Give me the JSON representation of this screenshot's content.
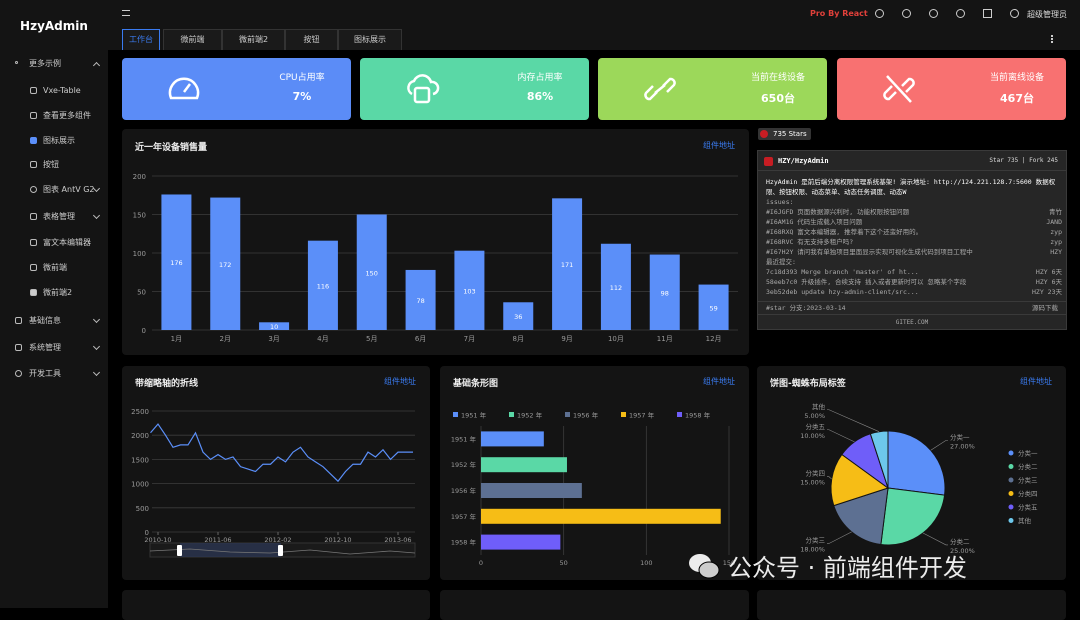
{
  "sidebar": {
    "logo": "HzyAdmin",
    "menu": [
      "更多示例",
      "Vxe-Table",
      "查看更多组件",
      "图标展示",
      "按钮",
      "图表 AntV G2",
      "表格管理",
      "富文本编辑器",
      "微前端",
      "微前端2",
      "基础信息",
      "系统管理",
      "开发工具"
    ]
  },
  "topbar": {
    "brand": "Pro By React",
    "user": "超级管理员",
    "tabs": [
      "工作台",
      "微前端",
      "微前端2",
      "按钮",
      "图标展示"
    ]
  },
  "stats": [
    {
      "label": "CPU占用率",
      "value": "7%"
    },
    {
      "label": "内存占用率",
      "value": "86%"
    },
    {
      "label": "当前在线设备",
      "value": "650台"
    },
    {
      "label": "当前离线设备",
      "value": "467台"
    }
  ],
  "chart_data": [
    {
      "type": "bar",
      "title": "近一年设备销售量",
      "link": "组件地址",
      "color": "#5b8ff9",
      "categories": [
        "1月",
        "2月",
        "3月",
        "4月",
        "5月",
        "6月",
        "7月",
        "8月",
        "9月",
        "10月",
        "11月",
        "12月"
      ],
      "values": [
        176,
        172,
        10,
        116,
        150,
        78,
        103,
        36,
        171,
        112,
        98,
        59
      ],
      "ylim": [
        0,
        200
      ],
      "yticks": [
        0,
        50,
        100,
        150,
        200
      ],
      "grid": true
    },
    {
      "type": "line",
      "title": "带缩略轴的折线",
      "link": "组件地址",
      "color": "#5b8ff9",
      "categories": [
        null,
        "2010-10",
        null,
        null,
        null,
        null,
        null,
        null,
        null,
        "2011-06",
        null,
        null,
        null,
        null,
        null,
        null,
        null,
        "2012-02",
        null,
        null,
        null,
        null,
        null,
        null,
        null,
        "2012-10",
        null,
        null,
        null,
        null,
        null,
        null,
        null,
        "2013-06",
        null,
        null
      ],
      "values": [
        2050,
        2230,
        2000,
        1750,
        1800,
        1800,
        2050,
        1650,
        1500,
        1600,
        1500,
        1550,
        1350,
        1300,
        1250,
        1400,
        1400,
        1550,
        1450,
        1650,
        1750,
        1550,
        1450,
        1350,
        1200,
        1050,
        1250,
        1400,
        1400,
        1650,
        1550,
        1700,
        1500,
        1650,
        1650,
        1650
      ],
      "ylim": [
        0,
        2500
      ],
      "yticks": [
        0,
        500,
        1000,
        1500,
        2000,
        2500
      ],
      "grid": true
    },
    {
      "type": "hbar",
      "title": "基础条形图",
      "link": "组件地址",
      "categories": [
        "1951 年",
        "1952 年",
        "1956 年",
        "1957 年",
        "1958 年"
      ],
      "values": [
        38,
        52,
        61,
        145,
        48
      ],
      "colors": [
        "#5b8ff9",
        "#5ad8a6",
        "#5d7092",
        "#f6bd16",
        "#6f5ef9"
      ],
      "xlim": [
        0,
        150
      ],
      "xticks": [
        0,
        50,
        100,
        150
      ],
      "grid": true,
      "legend": "top"
    },
    {
      "type": "pie",
      "title": "饼图-蜘蛛布局标签",
      "link": "组件地址",
      "categories": [
        "分类一",
        "分类二",
        "分类三",
        "分类四",
        "分类五",
        "其他"
      ],
      "values": [
        27,
        25,
        18,
        15,
        10,
        5
      ],
      "value_labels": [
        "27.00%",
        "25.00%",
        "18.00%",
        "15.00%",
        "10.00%",
        "5.00%"
      ],
      "colors": [
        "#5b8ff9",
        "#5ad8a6",
        "#5d7092",
        "#f6bd16",
        "#6f5ef9",
        "#6dc8ec"
      ],
      "legend": "right"
    }
  ],
  "gitee": {
    "badge": "735 Stars",
    "repo": "HZY/HzyAdmin",
    "stats": "Star 735 | Fork 245",
    "description": "HzyAdmin 是前后端分离权限管理系统基架! 演示地址: http://124.221.128.7:5600 数据权限、按钮权限、动态菜单、动态任务调度、动态W",
    "issues_title": "issues:",
    "issues": [
      [
        "#I6JGFD 页面数据源兴利时, 功能权限按钮问题",
        "青竹"
      ],
      [
        "#I6AM1G 代码生成载入项目问题",
        "JAND"
      ],
      [
        "#I68RXQ 富文本编辑器, 推荐着下这个还蛮好用的。",
        "zyp"
      ],
      [
        "#I68RVC 有无支持多租户吗?",
        "zyp"
      ],
      [
        "#I67H2Y 请问我有单独项目里面显示实现可视化生成代码到项目工程中",
        "HZY"
      ]
    ],
    "commits_title": "最近提交:",
    "commits": [
      [
        "7c18d393 Merge branch 'master' of ht...",
        "HZY 6天"
      ],
      [
        "58eeb7c0 升级插件, 合续支持 插入或者更新时可以 忽略某个字段",
        "HZY 6天"
      ],
      [
        "3eb52deb update hzy-admin-client/src...",
        "HZY 23天"
      ]
    ],
    "footer": "#star 分支:2023-03-14",
    "download": "源码下载",
    "site": "GITEE.COM"
  },
  "watermark": "公众号 · 前端组件开发"
}
